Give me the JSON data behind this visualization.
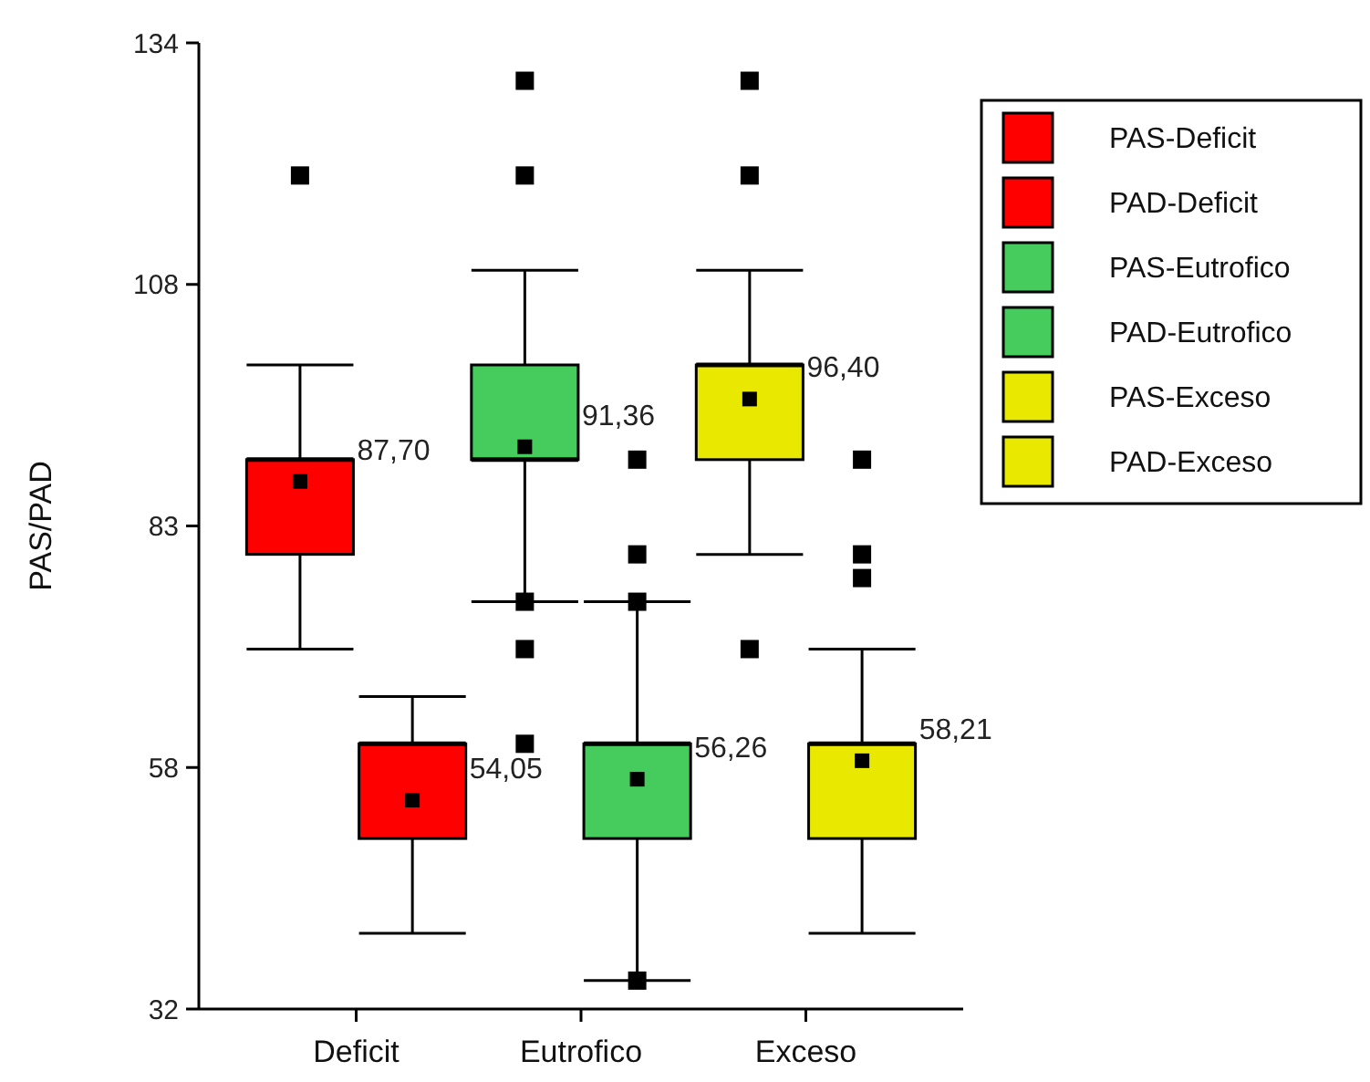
{
  "chart_data": {
    "type": "box",
    "categories": [
      "Deficit",
      "Eutrofico",
      "Exceso"
    ],
    "ylabel": "PAS/PAD",
    "ylim": [
      32,
      134
    ],
    "yticks": [
      32,
      {
        "value": 57.5,
        "label": "58"
      },
      83,
      {
        "value": 108.5,
        "label": "108"
      },
      134
    ],
    "legend": "top right",
    "marker": "square",
    "series": [
      {
        "name": "PAS-Deficit",
        "color": "#ff0000",
        "x": [
          "Deficit"
        ],
        "boxes": [
          {
            "low": 70,
            "q1": 80,
            "median": 90,
            "q3": 90,
            "high": 100,
            "mean": 87.7,
            "outliers": [
              120
            ]
          }
        ]
      },
      {
        "name": "PAD-Deficit",
        "color": "#ff0000",
        "x": [
          "Deficit"
        ],
        "boxes": [
          {
            "low": 40,
            "q1": 50,
            "median": 60,
            "q3": 60,
            "high": 65,
            "mean": 54.05
          }
        ]
      },
      {
        "name": "PAS-Eutrofico",
        "color": "#45cc5c",
        "x": [
          "Eutrofico"
        ],
        "boxes": [
          {
            "low": 75,
            "q1": 90,
            "median": 90,
            "q3": 100,
            "high": 110,
            "mean": 91.36,
            "outliers": [
              130,
              120,
              75,
              70,
              60
            ]
          }
        ]
      },
      {
        "name": "PAD-Eutrofico",
        "color": "#45cc5c",
        "x": [
          "Eutrofico"
        ],
        "boxes": [
          {
            "low": 35,
            "q1": 50,
            "median": 60,
            "q3": 60,
            "high": 75,
            "mean": 56.26,
            "outliers": [
              90,
              80,
              75,
              35
            ]
          }
        ]
      },
      {
        "name": "PAS-Exceso",
        "color": "#e8e800",
        "x": [
          "Exceso"
        ],
        "boxes": [
          {
            "low": 80,
            "q1": 90,
            "median": 100,
            "q3": 100,
            "high": 110,
            "mean": 96.4,
            "outliers": [
              130,
              120,
              70
            ]
          }
        ]
      },
      {
        "name": "PAD-Exceso",
        "color": "#e8e800",
        "x": [
          "Exceso"
        ],
        "boxes": [
          {
            "low": 40,
            "q1": 50,
            "median": 60,
            "q3": 60,
            "high": 70,
            "mean": 58.21,
            "outliers": [
              90,
              80,
              77.5
            ]
          }
        ]
      }
    ],
    "annotations": [
      "87,70",
      "54,05",
      "91,36",
      "56,26",
      "96,40",
      "58,21"
    ]
  }
}
